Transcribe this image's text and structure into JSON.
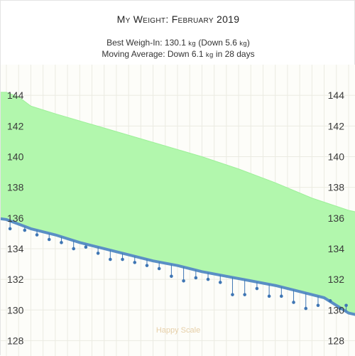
{
  "header": {
    "title": "My Weight: February 2019",
    "best_prefix": "Best Weigh-In: 130.1 ",
    "best_unit": "kg",
    "best_mid": " (Down 5.6 ",
    "best_unit2": "kg",
    "best_suffix": ")",
    "avg_prefix": "Moving Average: Down 6.1 ",
    "avg_unit": "kg",
    "avg_suffix": " in 28 days"
  },
  "watermark": "Happy Scale",
  "colors": {
    "goal_fill": "#b2f7ad",
    "goal_edge": "#9ef09a",
    "trend_line": "#5a8fc5",
    "points": "#3f76b4",
    "grid": "#ebebe2",
    "grid_bg": "#fdfdf9",
    "axis_text": "#3a3a3a",
    "watermark": "#e6cfa8"
  },
  "chart_data": {
    "type": "line",
    "days": 28,
    "ylim": [
      127,
      146
    ],
    "y_ticks": [
      128,
      130,
      132,
      134,
      136,
      138,
      140,
      142,
      144
    ],
    "goal_band_upper": [
      [
        0,
        144.2
      ],
      [
        1,
        143.9
      ],
      [
        2,
        143.3
      ],
      [
        4,
        142.8
      ],
      [
        7,
        142.1
      ],
      [
        10,
        141.4
      ],
      [
        13,
        140.7
      ],
      [
        16,
        140.0
      ],
      [
        19,
        139.2
      ],
      [
        22,
        138.3
      ],
      [
        25,
        137.3
      ],
      [
        28,
        136.5
      ]
    ],
    "series": [
      {
        "role": "moving_average",
        "points": [
          [
            0,
            135.9
          ],
          [
            1,
            135.6
          ],
          [
            2,
            135.3
          ],
          [
            4,
            134.9
          ],
          [
            6,
            134.4
          ],
          [
            8,
            134.0
          ],
          [
            10,
            133.6
          ],
          [
            12,
            133.2
          ],
          [
            14,
            132.9
          ],
          [
            16,
            132.5
          ],
          [
            18,
            132.2
          ],
          [
            20,
            131.9
          ],
          [
            22,
            131.6
          ],
          [
            24,
            131.2
          ],
          [
            26,
            130.8
          ],
          [
            28,
            129.8
          ]
        ]
      },
      {
        "role": "weigh_ins",
        "points": [
          [
            0.3,
            135.3
          ],
          [
            1.5,
            135.2
          ],
          [
            2.5,
            134.9
          ],
          [
            3.5,
            134.6
          ],
          [
            4.5,
            134.4
          ],
          [
            5.5,
            134.0
          ],
          [
            6.5,
            134.1
          ],
          [
            7.5,
            133.7
          ],
          [
            8.5,
            133.3
          ],
          [
            9.5,
            133.3
          ],
          [
            10.5,
            133.1
          ],
          [
            11.5,
            132.9
          ],
          [
            12.5,
            132.7
          ],
          [
            13.5,
            132.2
          ],
          [
            14.5,
            131.9
          ],
          [
            15.5,
            132.1
          ],
          [
            16.5,
            132.0
          ],
          [
            17.5,
            131.8
          ],
          [
            18.5,
            131.0
          ],
          [
            19.5,
            131.0
          ],
          [
            20.5,
            131.4
          ],
          [
            21.5,
            130.9
          ],
          [
            22.5,
            130.9
          ],
          [
            23.5,
            130.5
          ],
          [
            24.5,
            130.1
          ],
          [
            25.5,
            130.3
          ],
          [
            26.5,
            130.6
          ],
          [
            27.3,
            130.1
          ],
          [
            27.8,
            130.3
          ]
        ]
      }
    ]
  }
}
